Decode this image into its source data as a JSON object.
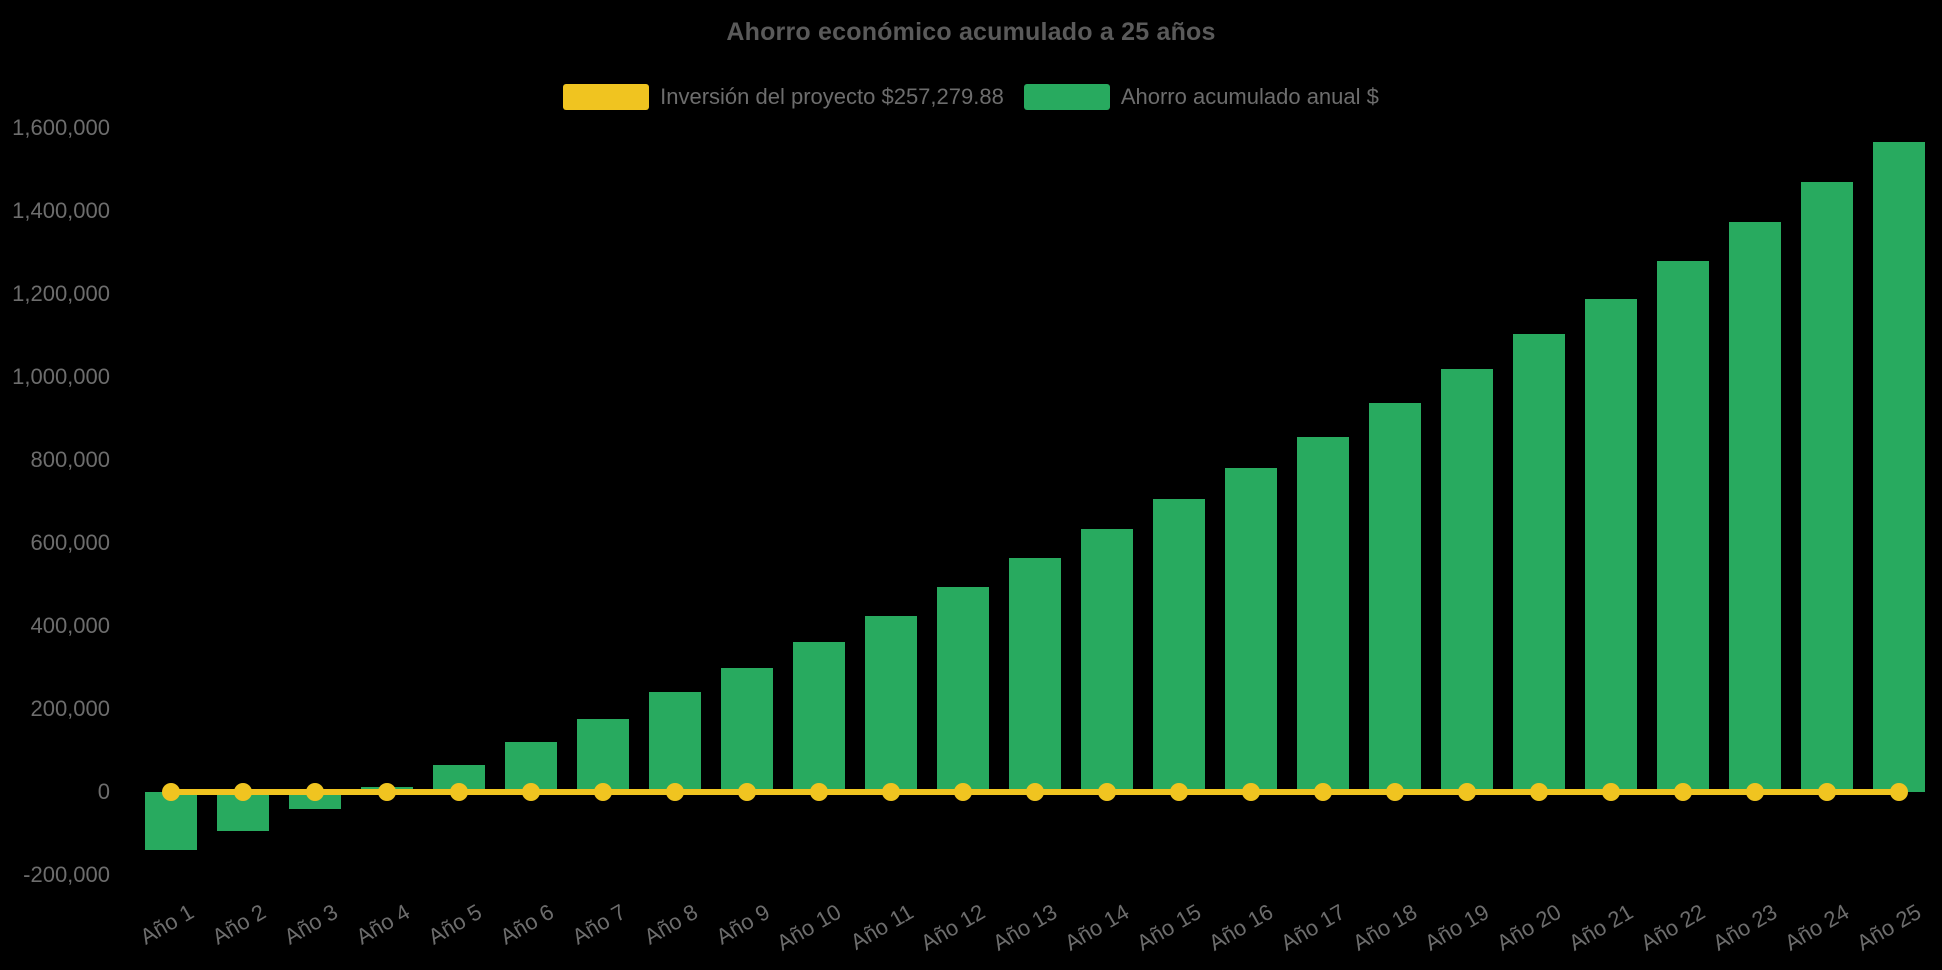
{
  "title": "Ahorro económico acumulado a 25 años",
  "colors": {
    "background": "#000000",
    "savings_green": "#28AA5F",
    "investment_yellow": "#F0C420",
    "title_text": "#5a5a5a",
    "label_text": "#6d6d6d"
  },
  "legend": {
    "investment": {
      "label": "Inversión del proyecto $257,279.88"
    },
    "savings": {
      "label": "Ahorro acumulado anual $"
    }
  },
  "chart_data": {
    "type": "bar",
    "title": "Ahorro económico acumulado a 25 años",
    "xlabel": "",
    "ylabel": "",
    "ylim": [
      -200000,
      1600000
    ],
    "ytick_step": 200000,
    "grid": false,
    "legend_position": "top",
    "categories": [
      "Año 1",
      "Año 2",
      "Año 3",
      "Año 4",
      "Año 5",
      "Año 6",
      "Año 7",
      "Año 8",
      "Año 9",
      "Año 10",
      "Año 11",
      "Año 12",
      "Año 13",
      "Año 14",
      "Año 15",
      "Año 16",
      "Año 17",
      "Año 18",
      "Año 19",
      "Año 20",
      "Año 21",
      "Año 22",
      "Año 23",
      "Año 24",
      "Año 25"
    ],
    "series": [
      {
        "name": "Ahorro acumulado anual $",
        "type": "bar",
        "color": "#28AA5F",
        "values": [
          -140000,
          -95000,
          -40000,
          12000,
          65000,
          120000,
          177000,
          240000,
          300000,
          362000,
          425000,
          494000,
          564000,
          634000,
          705000,
          780000,
          856000,
          937000,
          1019000,
          1104000,
          1189000,
          1280000,
          1374000,
          1470000,
          1567000
        ]
      },
      {
        "name": "Inversión del proyecto $257,279.88",
        "type": "line",
        "color": "#F0C420",
        "marker": "circle",
        "investment_amount_label": "$257,279.88",
        "plotted_flat_at": 0,
        "values": [
          0,
          0,
          0,
          0,
          0,
          0,
          0,
          0,
          0,
          0,
          0,
          0,
          0,
          0,
          0,
          0,
          0,
          0,
          0,
          0,
          0,
          0,
          0,
          0,
          0
        ]
      }
    ],
    "yticks": [
      {
        "value": -200000,
        "label": "-200,000"
      },
      {
        "value": 0,
        "label": "0"
      },
      {
        "value": 200000,
        "label": "200,000"
      },
      {
        "value": 400000,
        "label": "400,000"
      },
      {
        "value": 600000,
        "label": "600,000"
      },
      {
        "value": 800000,
        "label": "800,000"
      },
      {
        "value": 1000000,
        "label": "1,000,000"
      },
      {
        "value": 1200000,
        "label": "1,200,000"
      },
      {
        "value": 1400000,
        "label": "1,400,000"
      },
      {
        "value": 1600000,
        "label": "1,600,000"
      }
    ]
  }
}
